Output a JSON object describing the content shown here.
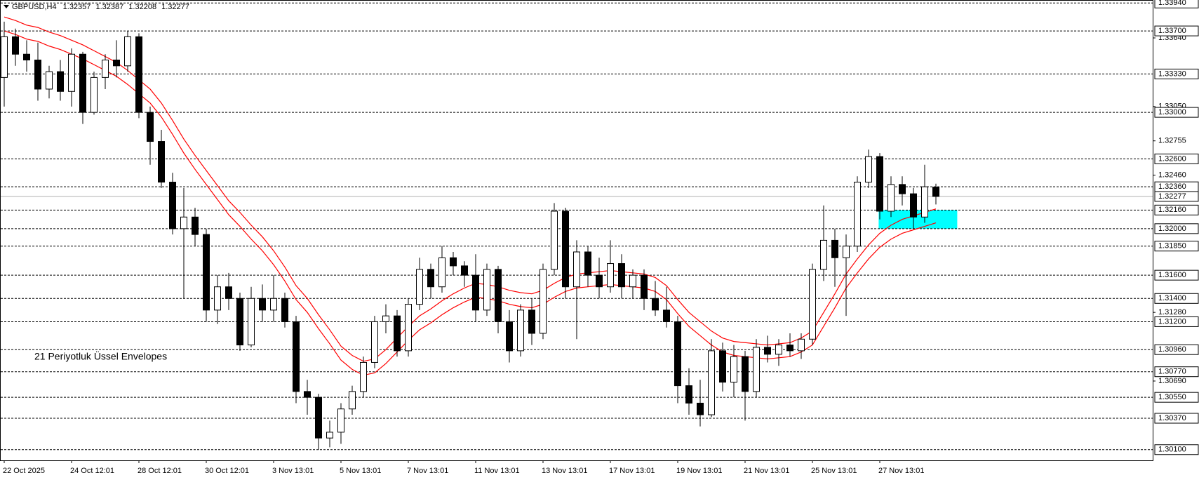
{
  "chart_data": {
    "type": "candlestick",
    "title": "GBPUSD,H4",
    "header_values": [
      1.32357,
      1.32387,
      1.32208,
      1.32277
    ],
    "annotation": "21  Periyotluk Üssel Envelopes",
    "annotation_color": "#ff4000",
    "bull_color": "#ffffff",
    "bear_color": "#000000",
    "categories": [
      "22 Oct 2025",
      null,
      null,
      null,
      null,
      null,
      "24 Oct 12:01",
      null,
      null,
      null,
      null,
      null,
      "28 Oct 12:01",
      null,
      null,
      null,
      null,
      null,
      "30 Oct 12:01",
      null,
      null,
      null,
      null,
      null,
      "3 Nov 13:01",
      null,
      null,
      null,
      null,
      null,
      "5 Nov 13:01",
      null,
      null,
      null,
      null,
      null,
      "7 Nov 13:01",
      null,
      null,
      null,
      null,
      null,
      "11 Nov 13:01",
      null,
      null,
      null,
      null,
      null,
      "13 Nov 13:01",
      null,
      null,
      null,
      null,
      null,
      "17 Nov 13:01",
      null,
      null,
      null,
      null,
      null,
      "19 Nov 13:01",
      null,
      null,
      null,
      null,
      null,
      "21 Nov 13:01",
      null,
      null,
      null,
      null,
      null,
      "25 Nov 13:01",
      null,
      null,
      null,
      null,
      null,
      "27 Nov 13:01",
      null,
      null,
      null,
      null,
      null
    ],
    "open": [
      1.333,
      1.3365,
      1.335,
      1.3345,
      1.332,
      1.3335,
      1.3318,
      1.335,
      1.33,
      1.333,
      1.3345,
      1.334,
      1.3365,
      1.33,
      1.3275,
      1.324,
      1.32,
      1.321,
      1.3195,
      1.313,
      1.315,
      1.314,
      1.31,
      1.314,
      1.313,
      1.314,
      1.312,
      1.306,
      1.3055,
      1.302,
      1.3025,
      1.3045,
      1.306,
      1.3085,
      1.312,
      1.3125,
      1.3095,
      1.3135,
      1.3165,
      1.315,
      1.3175,
      1.3168,
      1.316,
      1.313,
      1.3165,
      1.312,
      1.3095,
      1.313,
      1.311,
      1.3165,
      1.3215,
      1.315,
      1.318,
      1.316,
      1.315,
      1.317,
      1.315,
      1.316,
      1.314,
      1.313,
      1.312,
      1.3065,
      1.305,
      1.304,
      1.3095,
      1.3068,
      1.309,
      1.306,
      1.3098,
      1.3092,
      1.31,
      1.3095,
      1.3105,
      1.3165,
      1.319,
      1.3175,
      1.3185,
      1.324,
      1.3262,
      1.3215,
      1.3238,
      1.323,
      1.321,
      1.32357
    ],
    "high": [
      1.3378,
      1.3372,
      1.3362,
      1.336,
      1.334,
      1.3345,
      1.3355,
      1.3352,
      1.3335,
      1.335,
      1.3362,
      1.337,
      1.3368,
      1.3305,
      1.3285,
      1.3248,
      1.3235,
      1.3218,
      1.32,
      1.316,
      1.3162,
      1.3145,
      1.315,
      1.3152,
      1.316,
      1.3145,
      1.3125,
      1.307,
      1.3058,
      1.3035,
      1.305,
      1.3065,
      1.309,
      1.3125,
      1.3135,
      1.313,
      1.314,
      1.3175,
      1.317,
      1.3185,
      1.318,
      1.3172,
      1.3178,
      1.317,
      1.3168,
      1.313,
      1.3135,
      1.314,
      1.317,
      1.3222,
      1.3218,
      1.319,
      1.3185,
      1.3175,
      1.319,
      1.3178,
      1.3165,
      1.3165,
      1.3155,
      1.315,
      1.3125,
      1.308,
      1.307,
      1.3105,
      1.3102,
      1.31,
      1.3095,
      1.3105,
      1.3108,
      1.3105,
      1.311,
      1.311,
      1.317,
      1.322,
      1.32,
      1.3195,
      1.3245,
      1.3268,
      1.3265,
      1.3245,
      1.3245,
      1.3235,
      1.3255,
      1.32387
    ],
    "low": [
      1.3305,
      1.334,
      1.3335,
      1.331,
      1.3312,
      1.331,
      1.3305,
      1.329,
      1.3298,
      1.332,
      1.333,
      1.3335,
      1.3295,
      1.3255,
      1.3235,
      1.3195,
      1.314,
      1.3185,
      1.312,
      1.3118,
      1.313,
      1.3095,
      1.3098,
      1.312,
      1.312,
      1.3115,
      1.305,
      1.304,
      1.301,
      1.3012,
      1.3015,
      1.304,
      1.3055,
      1.308,
      1.311,
      1.309,
      1.309,
      1.313,
      1.314,
      1.3145,
      1.316,
      1.315,
      1.312,
      1.3125,
      1.311,
      1.3085,
      1.309,
      1.31,
      1.3105,
      1.316,
      1.314,
      1.3105,
      1.315,
      1.314,
      1.3145,
      1.314,
      1.314,
      1.313,
      1.3125,
      1.3115,
      1.305,
      1.304,
      1.303,
      1.3038,
      1.306,
      1.3055,
      1.3035,
      1.3055,
      1.3085,
      1.3082,
      1.309,
      1.3088,
      1.31,
      1.3155,
      1.315,
      1.3125,
      1.318,
      1.3235,
      1.3208,
      1.321,
      1.322,
      1.32,
      1.3205,
      1.32208
    ],
    "close": [
      1.3365,
      1.335,
      1.3345,
      1.332,
      1.3335,
      1.3318,
      1.335,
      1.33,
      1.333,
      1.3345,
      1.334,
      1.3365,
      1.33,
      1.3275,
      1.324,
      1.32,
      1.321,
      1.3195,
      1.313,
      1.315,
      1.314,
      1.31,
      1.314,
      1.313,
      1.314,
      1.312,
      1.306,
      1.3055,
      1.302,
      1.3025,
      1.3045,
      1.306,
      1.3085,
      1.312,
      1.3125,
      1.3095,
      1.3135,
      1.3165,
      1.315,
      1.3175,
      1.3168,
      1.316,
      1.313,
      1.3165,
      1.312,
      1.3095,
      1.313,
      1.311,
      1.3165,
      1.3215,
      1.315,
      1.318,
      1.316,
      1.315,
      1.317,
      1.315,
      1.316,
      1.314,
      1.313,
      1.312,
      1.3065,
      1.305,
      1.304,
      1.3095,
      1.3068,
      1.309,
      1.306,
      1.3098,
      1.3092,
      1.31,
      1.3095,
      1.3105,
      1.3165,
      1.319,
      1.3175,
      1.3185,
      1.324,
      1.3262,
      1.3215,
      1.3238,
      1.323,
      1.321,
      1.3236,
      1.32277
    ],
    "series": [
      {
        "color": "#ff0000",
        "values": [
          1.3382,
          1.3379,
          1.3375,
          1.3373,
          1.3369,
          1.3366,
          1.3362,
          1.3358,
          1.3353,
          1.3348,
          1.3343,
          1.3336,
          1.3328,
          1.332,
          1.3308,
          1.3293,
          1.3277,
          1.3263,
          1.325,
          1.3237,
          1.3224,
          1.3214,
          1.3203,
          1.3193,
          1.3181,
          1.3167,
          1.3151,
          1.314,
          1.3126,
          1.3113,
          1.3099,
          1.3091,
          1.3086,
          1.3088,
          1.3096,
          1.3106,
          1.3116,
          1.3125,
          1.3131,
          1.3138,
          1.3144,
          1.3149,
          1.3153,
          1.3152,
          1.315,
          1.3147,
          1.3145,
          1.3144,
          1.3147,
          1.3153,
          1.3158,
          1.3161,
          1.3162,
          1.3163,
          1.3164,
          1.3163,
          1.3162,
          1.3161,
          1.3158,
          1.3151,
          1.3139,
          1.3128,
          1.312,
          1.3112,
          1.3106,
          1.3103,
          1.3102,
          1.3101,
          1.31,
          1.3101,
          1.3102,
          1.3106,
          1.3112,
          1.3128,
          1.3144,
          1.3161,
          1.3174,
          1.3186,
          1.3196,
          1.3203,
          1.3208,
          1.3211,
          1.3214,
          1.3217
        ]
      },
      {
        "color": "#ff0000",
        "values": [
          1.337,
          1.3367,
          1.3363,
          1.3361,
          1.3357,
          1.3354,
          1.335,
          1.3346,
          1.3341,
          1.3336,
          1.3331,
          1.3324,
          1.3316,
          1.3308,
          1.3296,
          1.3281,
          1.3265,
          1.3251,
          1.3238,
          1.3225,
          1.3212,
          1.3202,
          1.3191,
          1.3181,
          1.3169,
          1.3155,
          1.3139,
          1.3128,
          1.3114,
          1.3101,
          1.3087,
          1.3079,
          1.3074,
          1.3076,
          1.3084,
          1.3094,
          1.3104,
          1.3113,
          1.3119,
          1.3126,
          1.3132,
          1.3137,
          1.3141,
          1.314,
          1.3138,
          1.3135,
          1.3133,
          1.3132,
          1.3135,
          1.3141,
          1.3146,
          1.3149,
          1.315,
          1.3151,
          1.3152,
          1.3151,
          1.315,
          1.3149,
          1.3146,
          1.3139,
          1.3127,
          1.3116,
          1.3108,
          1.31,
          1.3094,
          1.3091,
          1.309,
          1.3089,
          1.3088,
          1.3089,
          1.309,
          1.3094,
          1.31,
          1.3116,
          1.3132,
          1.3149,
          1.3162,
          1.3174,
          1.3184,
          1.3191,
          1.3196,
          1.3199,
          1.3202,
          1.3205
        ]
      }
    ],
    "zone": {
      "low": 1.32,
      "high": 1.3216,
      "start": 77.9,
      "end": 84.9,
      "color": "#00ffff"
    },
    "last_price": 1.32277,
    "ylim": [
      1.30008,
      1.33966
    ],
    "yticks": [
      {
        "value": 1.3364,
        "label": "1.33640"
      },
      {
        "value": 1.3305,
        "label": "1.33050"
      },
      1.32755,
      {
        "value": 1.3246,
        "label": "1.32460"
      },
      {
        "value": 1.3128,
        "label": "1.31280"
      },
      {
        "value": 1.3069,
        "label": "1.30690"
      }
    ],
    "levels": [
      {
        "value": 1.3394,
        "label": "1.33940"
      },
      {
        "value": 1.337,
        "label": "1.33700"
      },
      {
        "value": 1.3333,
        "label": "1.33330"
      },
      {
        "value": 1.33,
        "label": "1.33000"
      },
      {
        "value": 1.326,
        "label": "1.32600"
      },
      {
        "value": 1.3236,
        "label": "1.32360"
      },
      {
        "value": 1.3216,
        "label": "1.32160"
      },
      {
        "value": 1.32,
        "label": "1.32000"
      },
      {
        "value": 1.3185,
        "label": "1.31850"
      },
      {
        "value": 1.316,
        "label": "1.31600"
      },
      {
        "value": 1.314,
        "label": "1.31400"
      },
      {
        "value": 1.312,
        "label": "1.31200"
      },
      {
        "value": 1.3096,
        "label": "1.30960"
      },
      {
        "value": 1.3077,
        "label": "1.30770"
      },
      {
        "value": 1.3055,
        "label": "1.30550"
      },
      {
        "value": 1.3037,
        "label": "1.30370"
      },
      {
        "value": 1.301,
        "label": "1.30100"
      }
    ]
  }
}
